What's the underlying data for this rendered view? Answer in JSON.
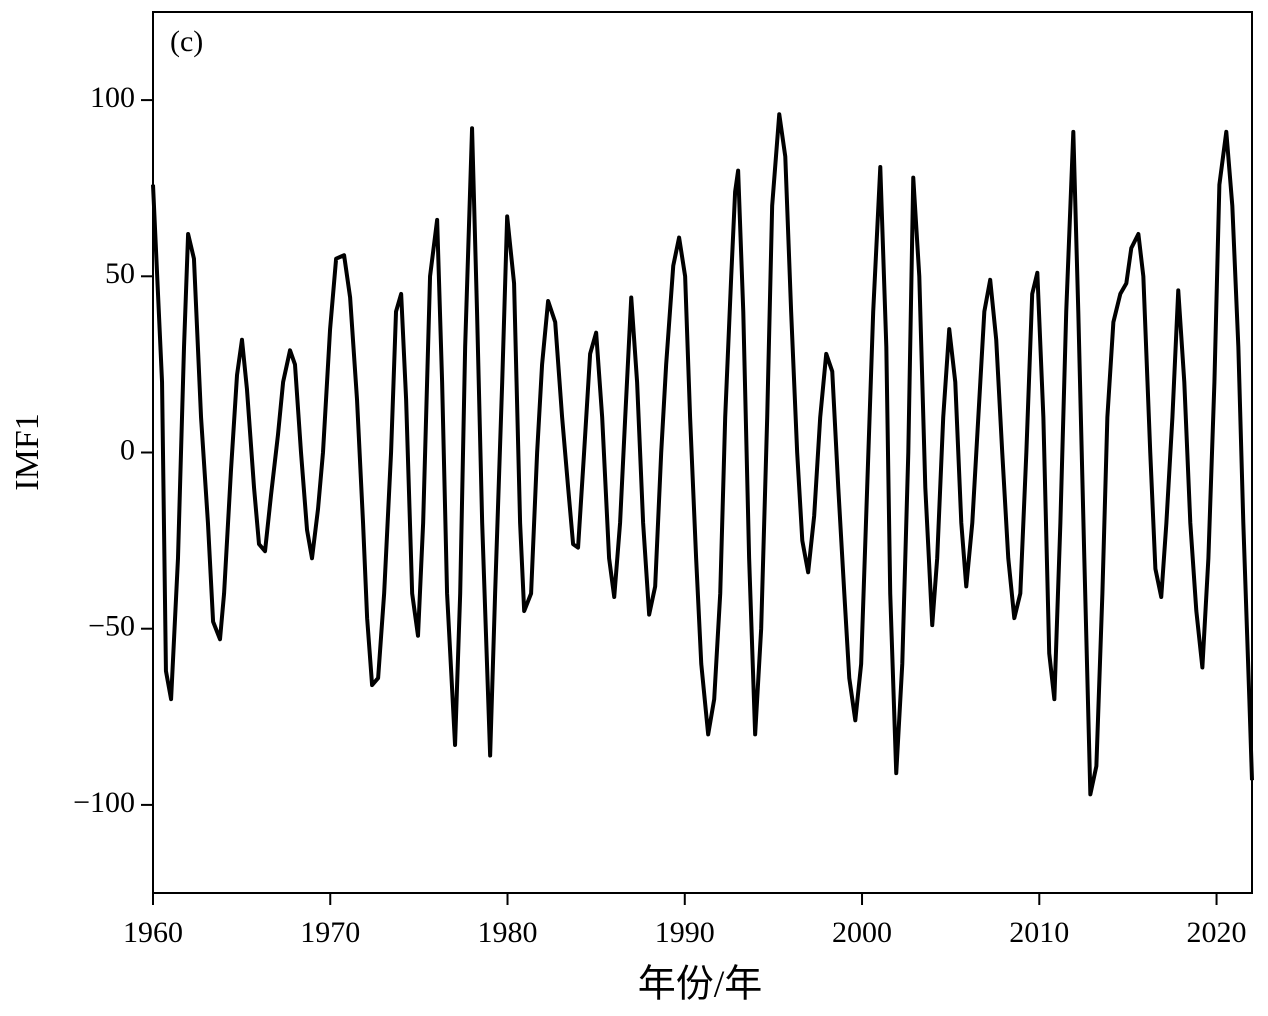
{
  "chart_data": {
    "type": "line",
    "annotation": "(c)",
    "xlabel": "年份/年",
    "ylabel": "IMF1",
    "color": "#000000",
    "xlim": [
      1960,
      2022
    ],
    "xticks": [
      1960,
      1970,
      1980,
      1990,
      2000,
      2010,
      2020
    ],
    "ylim": [
      -125,
      125
    ],
    "yticks": [
      {
        "value": -100,
        "label": "−100"
      },
      {
        "value": -50,
        "label": "−50"
      },
      0,
      50,
      100
    ],
    "x": [
      1960.0,
      1960.51,
      1960.73,
      1961.02,
      1961.41,
      1961.75,
      1961.98,
      1962.31,
      1962.71,
      1963.1,
      1963.39,
      1963.78,
      1964.01,
      1964.4,
      1964.74,
      1965.02,
      1965.3,
      1965.7,
      1965.98,
      1966.32,
      1966.66,
      1967.05,
      1967.34,
      1967.73,
      1968.01,
      1968.35,
      1968.69,
      1968.97,
      1969.31,
      1969.59,
      1969.99,
      1970.33,
      1970.78,
      1971.12,
      1971.51,
      1971.85,
      1972.08,
      1972.36,
      1972.7,
      1973.04,
      1973.43,
      1973.71,
      1974.0,
      1974.28,
      1974.62,
      1974.95,
      1975.24,
      1975.63,
      1976.03,
      1976.31,
      1976.59,
      1977.04,
      1977.33,
      1977.61,
      1978.0,
      1978.28,
      1978.57,
      1979.02,
      1979.3,
      1979.7,
      1979.98,
      1980.37,
      1980.71,
      1980.94,
      1981.33,
      1981.67,
      1981.95,
      1982.29,
      1982.69,
      1983.08,
      1983.42,
      1983.7,
      1983.98,
      1984.32,
      1984.66,
      1985.0,
      1985.34,
      1985.73,
      1986.02,
      1986.35,
      1986.64,
      1986.98,
      1987.31,
      1987.65,
      1987.99,
      1988.33,
      1988.67,
      1988.95,
      1989.35,
      1989.68,
      1990.02,
      1990.3,
      1990.64,
      1990.93,
      1991.32,
      1991.66,
      1992.0,
      1992.28,
      1992.62,
      1992.84,
      1993.01,
      1993.3,
      1993.63,
      1993.97,
      1994.31,
      1994.65,
      1994.93,
      1995.33,
      1995.67,
      1996.0,
      1996.34,
      1996.63,
      1996.96,
      1997.3,
      1997.64,
      1997.98,
      1998.32,
      1998.66,
      1999.0,
      1999.28,
      1999.62,
      1999.95,
      2000.29,
      2000.63,
      2001.03,
      2001.37,
      2001.59,
      2001.93,
      2002.27,
      2002.61,
      2002.89,
      2003.23,
      2003.57,
      2003.96,
      2004.24,
      2004.58,
      2004.92,
      2005.26,
      2005.6,
      2005.88,
      2006.22,
      2006.56,
      2006.9,
      2007.23,
      2007.57,
      2007.91,
      2008.25,
      2008.59,
      2008.93,
      2009.27,
      2009.6,
      2009.89,
      2010.23,
      2010.56,
      2010.85,
      2011.19,
      2011.52,
      2011.92,
      2012.2,
      2012.54,
      2012.88,
      2013.22,
      2013.56,
      2013.84,
      2014.18,
      2014.57,
      2014.91,
      2015.19,
      2015.59,
      2015.87,
      2016.26,
      2016.55,
      2016.88,
      2017.17,
      2017.51,
      2017.84,
      2018.18,
      2018.52,
      2018.86,
      2019.2,
      2019.54,
      2019.88,
      2020.16,
      2020.55,
      2020.89,
      2021.23,
      2021.51,
      2021.85,
      2022.0
    ],
    "values": [
      76,
      20,
      -62,
      -70,
      -30,
      30,
      62,
      55,
      10,
      -20,
      -48,
      -53,
      -40,
      -5,
      22,
      32,
      18,
      -10,
      -26,
      -28,
      -12,
      5,
      20,
      29,
      25,
      0,
      -22,
      -30,
      -16,
      0,
      35,
      55,
      56,
      44,
      15,
      -20,
      -47,
      -66,
      -64,
      -40,
      0,
      40,
      45,
      15,
      -40,
      -52,
      -20,
      50,
      66,
      20,
      -40,
      -83,
      -40,
      30,
      92,
      40,
      -20,
      -86,
      -40,
      20,
      67,
      48,
      -20,
      -45,
      -40,
      0,
      25,
      43,
      37,
      10,
      -10,
      -26,
      -27,
      0,
      28,
      34,
      10,
      -30,
      -41,
      -20,
      10,
      44,
      20,
      -20,
      -46,
      -38,
      0,
      25,
      53,
      61,
      50,
      10,
      -30,
      -60,
      -80,
      -70,
      -40,
      10,
      50,
      74,
      80,
      40,
      -30,
      -80,
      -50,
      10,
      70,
      96,
      84,
      40,
      0,
      -25,
      -34,
      -18,
      10,
      28,
      23,
      -10,
      -40,
      -64,
      -76,
      -60,
      -10,
      40,
      81,
      30,
      -40,
      -91,
      -60,
      0,
      78,
      50,
      -10,
      -49,
      -30,
      10,
      35,
      20,
      -20,
      -38,
      -20,
      10,
      40,
      49,
      32,
      0,
      -30,
      -47,
      -40,
      0,
      45,
      51,
      10,
      -57,
      -70,
      -20,
      40,
      91,
      40,
      -30,
      -97,
      -89,
      -40,
      10,
      37,
      45,
      48,
      58,
      62,
      50,
      0,
      -33,
      -41,
      -20,
      10,
      46,
      20,
      -20,
      -45,
      -61,
      -30,
      20,
      76,
      91,
      70,
      30,
      -20,
      -70,
      -93
    ]
  }
}
